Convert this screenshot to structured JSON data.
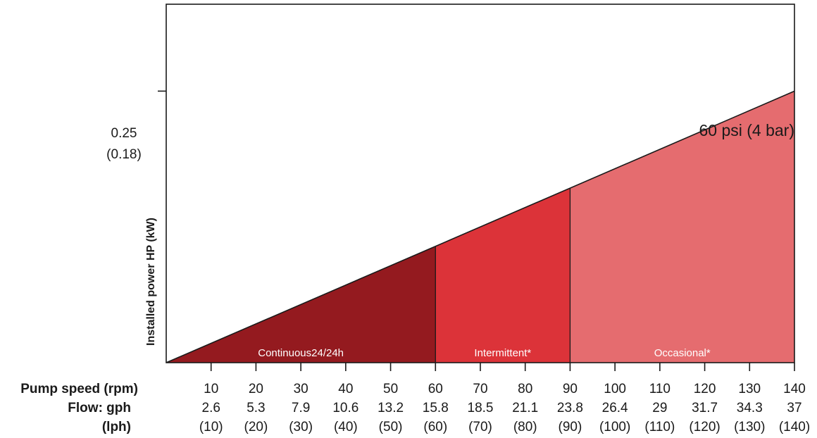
{
  "chart_data": {
    "type": "area",
    "ylabel": "Installed power HP (kW)",
    "y_tick": {
      "value": 0.25,
      "label_hp": "0.25",
      "label_kw": "(0.18)"
    },
    "xlim": [
      0,
      140
    ],
    "ylim": [
      0,
      0.33
    ],
    "line": {
      "x": [
        0,
        140
      ],
      "y": [
        0,
        0.25
      ]
    },
    "annotation": "60 psi (4 bar)",
    "rows": {
      "speed_label": "Pump speed (rpm)",
      "flow_gph_label": "Flow: gph",
      "flow_lph_label": "(lph)"
    },
    "ticks": [
      {
        "rpm": 10,
        "rpm_label": "10",
        "gph": "2.6",
        "lph": "(10)"
      },
      {
        "rpm": 20,
        "rpm_label": "20",
        "gph": "5.3",
        "lph": "(20)"
      },
      {
        "rpm": 30,
        "rpm_label": "30",
        "gph": "7.9",
        "lph": "(30)"
      },
      {
        "rpm": 40,
        "rpm_label": "40",
        "gph": "10.6",
        "lph": "(40)"
      },
      {
        "rpm": 50,
        "rpm_label": "50",
        "gph": "13.2",
        "lph": "(50)"
      },
      {
        "rpm": 60,
        "rpm_label": "60",
        "gph": "15.8",
        "lph": "(60)"
      },
      {
        "rpm": 70,
        "rpm_label": "70",
        "gph": "18.5",
        "lph": "(70)"
      },
      {
        "rpm": 80,
        "rpm_label": "80",
        "gph": "21.1",
        "lph": "(80)"
      },
      {
        "rpm": 90,
        "rpm_label": "90",
        "gph": "23.8",
        "lph": "(90)"
      },
      {
        "rpm": 100,
        "rpm_label": "100",
        "gph": "26.4",
        "lph": "(100)"
      },
      {
        "rpm": 110,
        "rpm_label": "110",
        "gph": "29",
        "lph": "(110)"
      },
      {
        "rpm": 120,
        "rpm_label": "120",
        "gph": "31.7",
        "lph": "(120)"
      },
      {
        "rpm": 130,
        "rpm_label": "130",
        "gph": "34.3",
        "lph": "(130)"
      },
      {
        "rpm": 140,
        "rpm_label": "140",
        "gph": "37",
        "lph": "(140)"
      }
    ],
    "zones": [
      {
        "label": "Continuous24/24h",
        "from": 0,
        "to": 60,
        "color": "#941a1f"
      },
      {
        "label": "Intermittent*",
        "from": 60,
        "to": 90,
        "color": "#dc3339"
      },
      {
        "label": "Occasional*",
        "from": 90,
        "to": 140,
        "color": "#e56c6f"
      }
    ],
    "grid": false
  }
}
